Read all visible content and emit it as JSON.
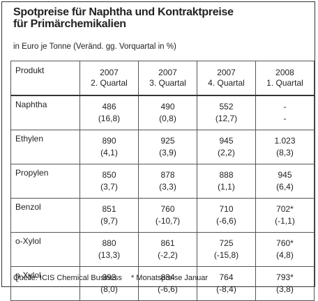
{
  "header": {
    "title": "Spotpreise für Naphtha und Kontraktpreise für Primärchemikalien",
    "subtitle": "in Euro je Tonne (Veränd. gg. Vorquartal in %)"
  },
  "table": {
    "first_column": "Produkt",
    "columns": [
      {
        "year": "2007",
        "quarter": "2. Quartal"
      },
      {
        "year": "2007",
        "quarter": "3. Quartal"
      },
      {
        "year": "2007",
        "quarter": "4. Quartal"
      },
      {
        "year": "2008",
        "quarter": "1. Quartal"
      }
    ],
    "rows": [
      {
        "product": "Naphtha",
        "cells": [
          {
            "value": "486",
            "change": "(16,8)"
          },
          {
            "value": "490",
            "change": "(0,8)"
          },
          {
            "value": "552",
            "change": "(12,7)"
          },
          {
            "value": "-",
            "change": "-"
          }
        ]
      },
      {
        "product": "Ethylen",
        "cells": [
          {
            "value": "890",
            "change": "(4,1)"
          },
          {
            "value": "925",
            "change": "(3,9)"
          },
          {
            "value": "945",
            "change": "(2,2)"
          },
          {
            "value": "1.023",
            "change": "(8,3)"
          }
        ]
      },
      {
        "product": "Propylen",
        "cells": [
          {
            "value": "850",
            "change": "(3,7)"
          },
          {
            "value": "878",
            "change": "(3,3)"
          },
          {
            "value": "888",
            "change": "(1,1)"
          },
          {
            "value": "945",
            "change": "(6,4)"
          }
        ]
      },
      {
        "product": "Benzol",
        "cells": [
          {
            "value": "851",
            "change": "(9,7)"
          },
          {
            "value": "760",
            "change": "(-10,7)"
          },
          {
            "value": "710",
            "change": "(-6,6)"
          },
          {
            "value": "702*",
            "change": "(-1,1)"
          }
        ]
      },
      {
        "product": "o-Xylol",
        "cells": [
          {
            "value": "880",
            "change": "(13,3)"
          },
          {
            "value": "861",
            "change": "(-2,2)"
          },
          {
            "value": "725",
            "change": "(-15,8)"
          },
          {
            "value": "760*",
            "change": "(4,8)"
          }
        ]
      },
      {
        "product": "p-Xylol",
        "cells": [
          {
            "value": "893",
            "change": "(8,0)"
          },
          {
            "value": "834",
            "change": "(-6,6)"
          },
          {
            "value": "764",
            "change": "(-8,4)"
          },
          {
            "value": "793*",
            "change": "(3,8)"
          }
        ]
      }
    ]
  },
  "footer": {
    "source": "Quelle: ICIS Chemical Business",
    "note": "* Monatspreise Januar"
  }
}
